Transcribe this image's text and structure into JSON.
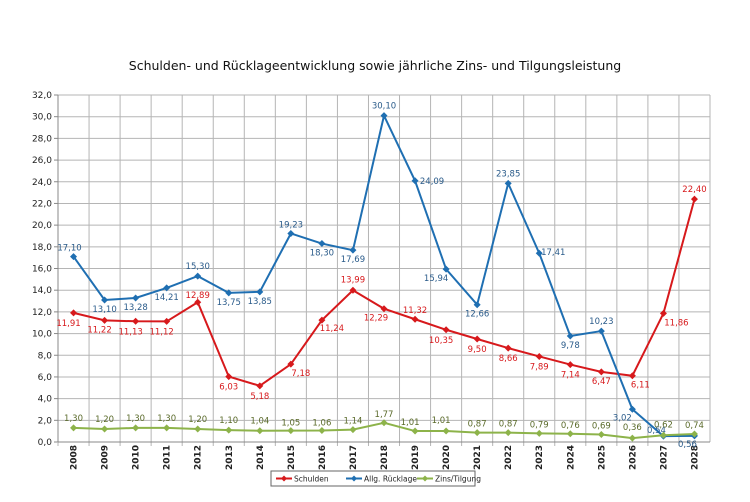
{
  "chart_data": {
    "type": "line",
    "title": "Schulden- und Rücklageentwicklung sowie jährliche Zins- und Tilgungsleistung",
    "xlabel": "",
    "ylabel": "",
    "ylim": [
      0,
      32
    ],
    "ytick_step": 2,
    "ytick_labels": [
      "0,0",
      "2,0",
      "4,0",
      "6,0",
      "8,0",
      "10,0",
      "12,0",
      "14,0",
      "16,0",
      "18,0",
      "20,0",
      "22,0",
      "24,0",
      "26,0",
      "28,0",
      "30,0",
      "32,0"
    ],
    "grid": true,
    "legend": "bottom",
    "categories": [
      "2008",
      "2009",
      "2010",
      "2011",
      "2012",
      "2013",
      "2014",
      "2015",
      "2016",
      "2017",
      "2018",
      "2019",
      "2020",
      "2021",
      "2022",
      "2023",
      "2024",
      "2025",
      "2026",
      "2027",
      "2028"
    ],
    "series": [
      {
        "name": "Schulden",
        "color": "#d7191c",
        "values": [
          11.91,
          11.22,
          11.13,
          11.12,
          12.89,
          6.03,
          5.18,
          7.18,
          11.24,
          13.99,
          12.29,
          11.32,
          10.35,
          9.5,
          8.66,
          7.89,
          7.14,
          6.47,
          6.11,
          11.86,
          22.4
        ],
        "labels": [
          "11,91",
          "11,22",
          "11,13",
          "11,12",
          "12,89",
          "6,03",
          "5,18",
          "7,18",
          "11,24",
          "13,99",
          "12,29",
          "11,32",
          "10,35",
          "9,50",
          "8,66",
          "7,89",
          "7,14",
          "6,47",
          "6,11",
          "11,86",
          "22,40"
        ]
      },
      {
        "name": "Allg. Rücklage",
        "color": "#1f6fb2",
        "values": [
          17.1,
          13.1,
          13.28,
          14.21,
          15.3,
          13.75,
          13.85,
          19.23,
          18.3,
          17.69,
          30.1,
          24.09,
          15.94,
          12.66,
          23.85,
          17.41,
          9.78,
          10.23,
          3.02,
          0.54,
          0.56
        ],
        "labels": [
          "17,10",
          "13,10",
          "13,28",
          "14,21",
          "15,30",
          "13,75",
          "13,85",
          "19,23",
          "18,30",
          "17,69",
          "30,10",
          "24,09",
          "15,94",
          "12,66",
          "23,85",
          "17,41",
          "9,78",
          "10,23",
          "3,02",
          "0,54",
          "0,56"
        ]
      },
      {
        "name": "Zins/Tilgung",
        "color": "#8db34a",
        "values": [
          1.3,
          1.2,
          1.3,
          1.3,
          1.2,
          1.1,
          1.04,
          1.05,
          1.06,
          1.14,
          1.77,
          1.01,
          1.01,
          0.87,
          0.87,
          0.79,
          0.76,
          0.69,
          0.36,
          0.62,
          0.74
        ],
        "labels": [
          "1,30",
          "1,20",
          "1,30",
          "1,30",
          "1,20",
          "1,10",
          "1,04",
          "1,05",
          "1,06",
          "1,14",
          "1,77",
          "1,01",
          "1,01",
          "0,87",
          "0,87",
          "0,79",
          "0,76",
          "0,69",
          "0,36",
          "0,62",
          "0,74"
        ]
      }
    ]
  }
}
